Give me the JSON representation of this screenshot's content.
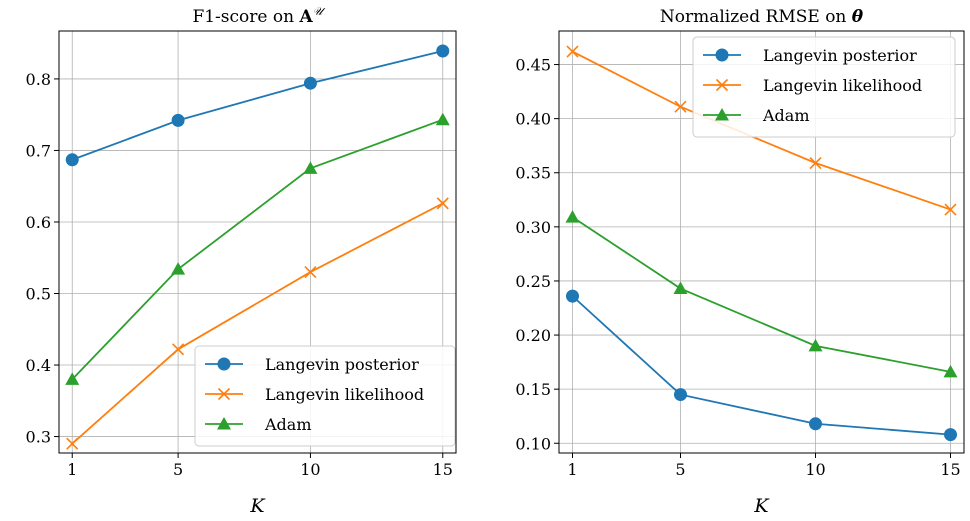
{
  "chart_data": [
    {
      "type": "line",
      "title": "F1-score on ",
      "title_symbol": "A",
      "title_superscript": "𝒰",
      "xlabel": "K",
      "ylabel": "",
      "x": [
        1,
        5,
        10,
        15
      ],
      "xticks": [
        "1",
        "5",
        "10",
        "15"
      ],
      "yticks": [
        0.3,
        0.4,
        0.5,
        0.6,
        0.7,
        0.8
      ],
      "ytick_labels": [
        "0.3",
        "0.4",
        "0.5",
        "0.6",
        "0.7",
        "0.8"
      ],
      "xlim": [
        0.5,
        15.5
      ],
      "ylim": [
        0.277,
        0.867
      ],
      "grid": true,
      "legend_position": "lower-right",
      "series": [
        {
          "name": "Langevin posterior",
          "color": "#1f77b4",
          "marker": "circle",
          "values": [
            0.687,
            0.742,
            0.794,
            0.839
          ]
        },
        {
          "name": "Langevin likelihood",
          "color": "#ff7f0e",
          "marker": "x",
          "values": [
            0.29,
            0.422,
            0.53,
            0.626
          ]
        },
        {
          "name": "Adam",
          "color": "#2ca02c",
          "marker": "triangle",
          "values": [
            0.38,
            0.534,
            0.675,
            0.743
          ]
        }
      ]
    },
    {
      "type": "line",
      "title": "Normalized RMSE on ",
      "title_symbol": "θ",
      "title_superscript": "",
      "xlabel": "K",
      "ylabel": "",
      "x": [
        1,
        5,
        10,
        15
      ],
      "xticks": [
        "1",
        "5",
        "10",
        "15"
      ],
      "yticks": [
        0.1,
        0.15,
        0.2,
        0.25,
        0.3,
        0.35,
        0.4,
        0.45
      ],
      "ytick_labels": [
        "0.10",
        "0.15",
        "0.20",
        "0.25",
        "0.30",
        "0.35",
        "0.40",
        "0.45"
      ],
      "xlim": [
        0.5,
        15.5
      ],
      "ylim": [
        0.091,
        0.481
      ],
      "grid": true,
      "legend_position": "top-right",
      "series": [
        {
          "name": "Langevin posterior",
          "color": "#1f77b4",
          "marker": "circle",
          "values": [
            0.236,
            0.145,
            0.118,
            0.108
          ]
        },
        {
          "name": "Langevin likelihood",
          "color": "#ff7f0e",
          "marker": "x",
          "values": [
            0.462,
            0.411,
            0.359,
            0.316
          ]
        },
        {
          "name": "Adam",
          "color": "#2ca02c",
          "marker": "triangle",
          "values": [
            0.309,
            0.243,
            0.19,
            0.166
          ]
        }
      ]
    }
  ]
}
